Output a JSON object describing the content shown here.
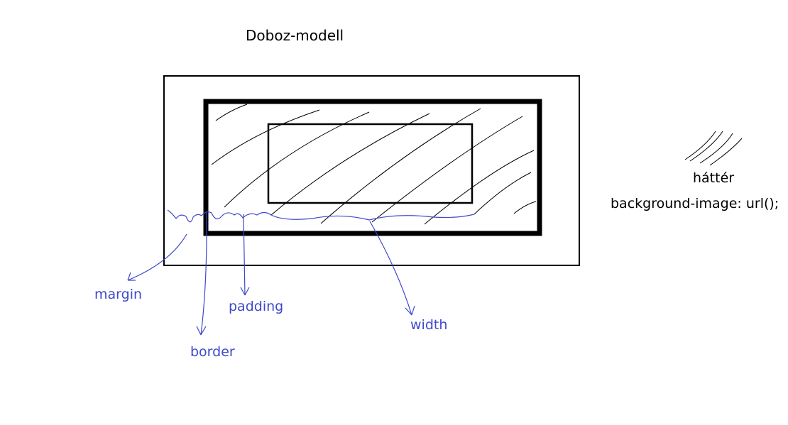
{
  "title": "Doboz-modell",
  "legend": {
    "background_label": "háttér",
    "code": "background-image: url();"
  },
  "labels": {
    "margin": "margin",
    "padding": "padding",
    "border": "border",
    "width": "width"
  },
  "colors": {
    "ink": "#000000",
    "annotation": "#3f48cc"
  }
}
